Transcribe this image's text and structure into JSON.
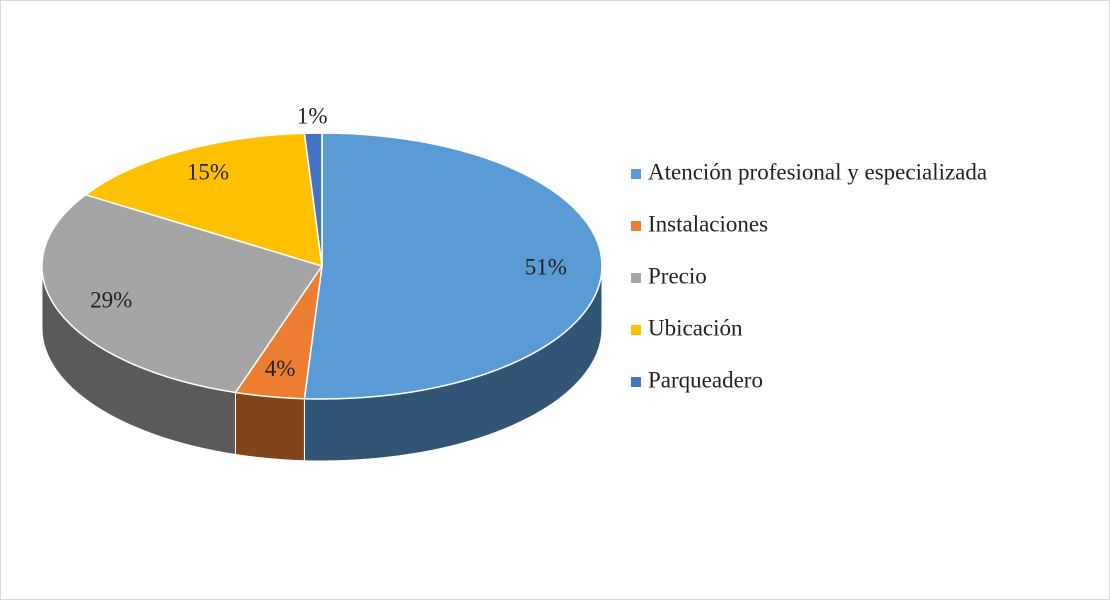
{
  "chart_data": {
    "type": "pie",
    "categories": [
      "Atención profesional y especializada",
      "Instalaciones",
      "Precio",
      "Ubicación",
      "Parqueadero"
    ],
    "values": [
      51,
      4,
      29,
      15,
      1
    ],
    "value_labels": [
      "51%",
      "4%",
      "29%",
      "15%",
      "1%"
    ],
    "colors": [
      "#5b9bd5",
      "#ed7d31",
      "#a5a5a5",
      "#ffc000",
      "#4472c4"
    ],
    "legend": "right"
  }
}
